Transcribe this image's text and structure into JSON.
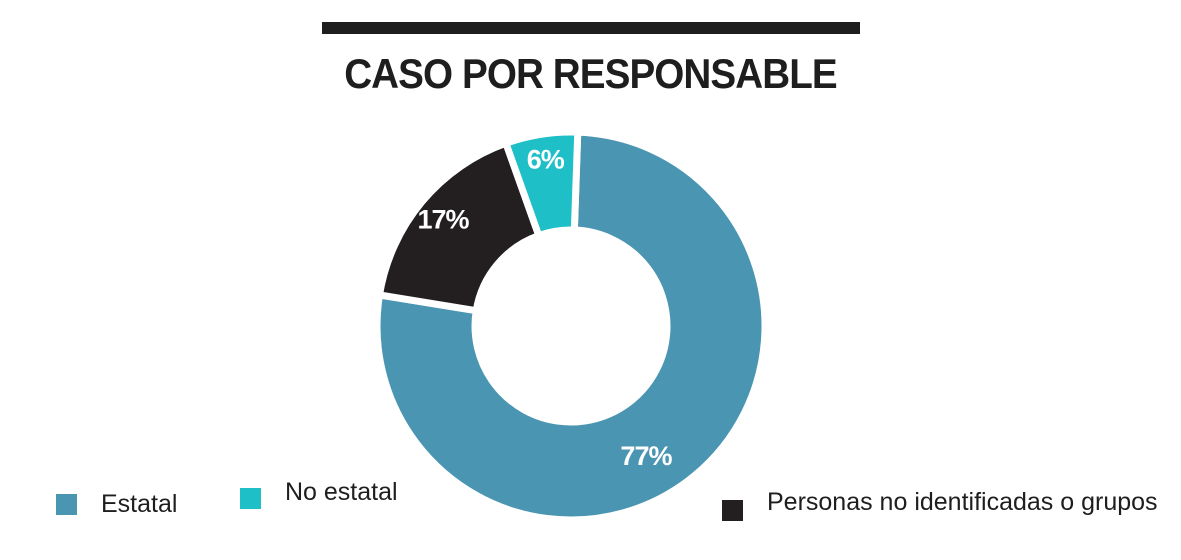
{
  "title": "CASO POR RESPONSABLE",
  "colors": {
    "estatal": "#4a96b2",
    "no_estatal": "#1fbfc8",
    "personas": "#231f20",
    "rule": "#1e1e1e"
  },
  "chart_data": {
    "type": "pie",
    "title": "CASO POR RESPONSABLE",
    "donut": true,
    "legend_position": "bottom",
    "slices": [
      {
        "label": "Estatal",
        "value": 77,
        "value_label": "77%",
        "color": "#4a96b2"
      },
      {
        "label": "Personas no identificadas o grupos",
        "value": 17,
        "value_label": "17%",
        "color": "#231f20"
      },
      {
        "label": "No estatal",
        "value": 6,
        "value_label": "6%",
        "color": "#1fbfc8"
      }
    ]
  },
  "legend": [
    {
      "label": "Estatal",
      "color": "#4a96b2"
    },
    {
      "label": "No estatal",
      "color": "#1fbfc8"
    },
    {
      "label": "Personas no identificadas o grupos",
      "color": "#231f20"
    }
  ]
}
